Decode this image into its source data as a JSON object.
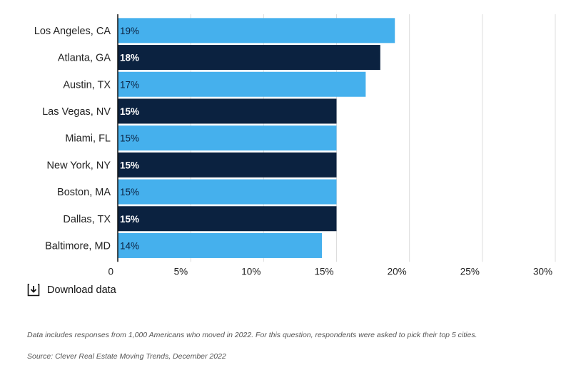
{
  "chart_data": {
    "type": "bar",
    "orientation": "horizontal",
    "categories": [
      "Los Angeles, CA",
      "Atlanta, GA",
      "Austin, TX",
      "Las Vegas, NV",
      "Miami, FL",
      "New York, NY",
      "Boston, MA",
      "Dallas, TX",
      "Baltimore, MD"
    ],
    "values": [
      19,
      18,
      17,
      15,
      15,
      15,
      15,
      15,
      14
    ],
    "value_labels": [
      "19%",
      "18%",
      "17%",
      "15%",
      "15%",
      "15%",
      "15%",
      "15%",
      "14%"
    ],
    "bar_colors": [
      "#45b0ed",
      "#0b2240",
      "#45b0ed",
      "#0b2240",
      "#45b0ed",
      "#0b2240",
      "#45b0ed",
      "#0b2240",
      "#45b0ed"
    ],
    "label_colors": [
      "#0b2240",
      "#ffffff",
      "#0b2240",
      "#ffffff",
      "#0b2240",
      "#ffffff",
      "#0b2240",
      "#ffffff",
      "#0b2240"
    ],
    "xlim": [
      0,
      30
    ],
    "xticks": [
      0,
      5,
      10,
      15,
      20,
      25,
      30
    ],
    "xtick_labels": [
      "0",
      "5%",
      "10%",
      "15%",
      "20%",
      "25%",
      "30%"
    ],
    "grid": true,
    "title": "",
    "xlabel": "",
    "ylabel": ""
  },
  "download": {
    "label": "Download data",
    "icon": "download-icon"
  },
  "notes": {
    "description": "Data includes responses from 1,000 Americans who moved in 2022. For this question, respondents were asked to pick their top 5 cities.",
    "source": "Source: Clever Real Estate Moving Trends, December 2022"
  },
  "colors": {
    "light_bar": "#45b0ed",
    "dark_bar": "#0b2240",
    "grid": "#dddddd",
    "axis": "#111111"
  }
}
